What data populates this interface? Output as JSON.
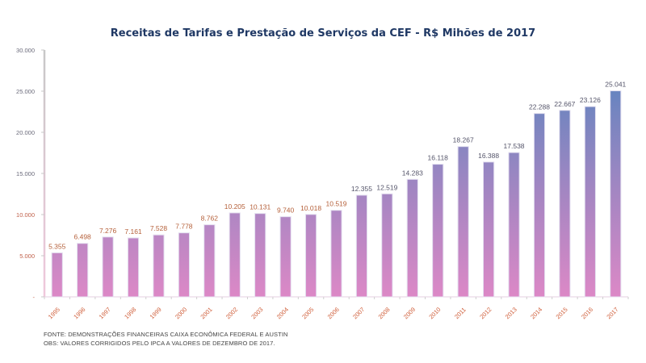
{
  "chart_data": {
    "type": "bar",
    "title": "Receitas de Tarifas e Prestação de Serviços da CEF - R$ Mihões de 2017",
    "xlabel": "",
    "ylabel": "",
    "ylim": [
      0,
      30000
    ],
    "grid": false,
    "legend": "none",
    "yticks": [
      {
        "value": 0,
        "label": "-"
      },
      {
        "value": 5000,
        "label": "5.000"
      },
      {
        "value": 10000,
        "label": "10.000"
      },
      {
        "value": 15000,
        "label": "15.000"
      },
      {
        "value": 20000,
        "label": "20.000"
      },
      {
        "value": 25000,
        "label": "25.000"
      },
      {
        "value": 30000,
        "label": "30.000"
      }
    ],
    "categories": [
      "1995",
      "1996",
      "1997",
      "1998",
      "1999",
      "2000",
      "2001",
      "2002",
      "2003",
      "2004",
      "2005",
      "2006",
      "2007",
      "2008",
      "2009",
      "2010",
      "2011",
      "2012",
      "2013",
      "2014",
      "2015",
      "2016",
      "2017"
    ],
    "values": [
      5355,
      6498,
      7276,
      7161,
      7528,
      7778,
      8762,
      10205,
      10131,
      9740,
      10018,
      10519,
      12355,
      12519,
      14283,
      16118,
      18267,
      16388,
      17538,
      22288,
      22667,
      23126,
      25041
    ],
    "value_labels": [
      "5.355",
      "6.498",
      "7.276",
      "7.161",
      "7.528",
      "7.778",
      "8.762",
      "10.205",
      "10.131",
      "9.740",
      "10.018",
      "10.519",
      "12.355",
      "12.519",
      "14.283",
      "16.118",
      "18.267",
      "16.388",
      "17.538",
      "22.288",
      "22.667",
      "23.126",
      "25.041"
    ],
    "colors": {
      "bar_top": "#4f81bd",
      "bar_mid": "#8f86c2",
      "bar_bottom": "#dc88c6",
      "axis": "#c9c9c9",
      "title": "#1f3864",
      "label_warm": "#b5603a",
      "label_cool": "#5a5a6a",
      "tick_label": "#c0604a"
    }
  },
  "footnotes": {
    "source": "FONTE: DEMONSTRAÇÕES FINANCEIRAS CAIXA ECONÔMICA FEDERAL E AUSTIN",
    "note": "OBS: VALORES CORRIGIDOS PELO IPCA A VALORES DE DEZEMBRO DE 2017."
  }
}
